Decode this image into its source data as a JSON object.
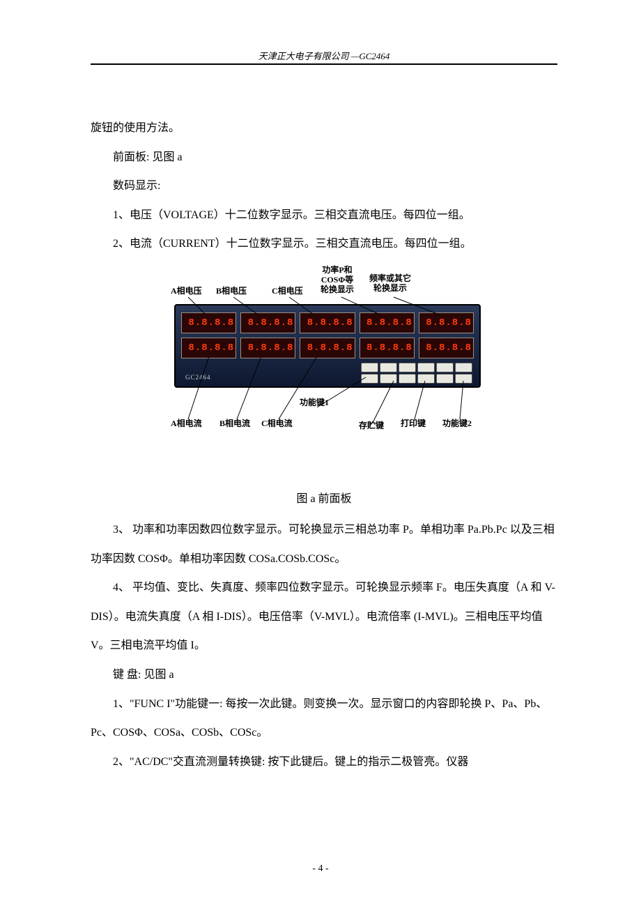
{
  "header": "天津正大电子有限公司  —GC2464",
  "intro": "旋钮的使用方法。",
  "lines": [
    "前面板:  见图 a",
    "数码显示:",
    "1、电压（VOLTAGE）十二位数字显示。三相交直流电压。每四位一组。",
    "2、电流（CURRENT）十二位数字显示。三相交直流电压。每四位一组。"
  ],
  "diagram": {
    "device_model": "GC2464",
    "top_labels": {
      "a_v": "A相电压",
      "b_v": "B相电压",
      "c_v": "C相电压",
      "p_cos": "功率P和\nCOSΦ等\n轮换显示",
      "freq": "频率或其它\n轮换显示"
    },
    "bottom_labels": {
      "a_i": "A相电流",
      "b_i": "B相电流",
      "c_i": "C相电流",
      "func1": "功能键1",
      "store": "存贮键",
      "print": "打印键",
      "func2": "功能键2"
    },
    "display_value": "8.8.8.8",
    "display_color": "#ff3b10",
    "chassis_color_top": "#2a3a5a",
    "chassis_color_bottom": "#0e1830",
    "display_bg": "#2a0606",
    "key_bg": "#e8e8e0"
  },
  "caption": "图 a    前面板",
  "body": [
    "3、 功率和功率因数四位数字显示。可轮换显示三相总功率 P。单相功率 Pa.Pb.Pc 以及三相功率因数 COSΦ。单相功率因数 COSa.COSb.COSc。",
    "4、 平均值、变比、失真度、频率四位数字显示。可轮换显示频率 F。电压失真度（A 和 V-DIS）。电流失真度（A 相 I-DIS）。电压倍率（V-MVL）。电流倍率 (I-MVL)。三相电压平均值 V。三相电流平均值 I。",
    "键      盘:  见图 a",
    "1、\"FUNC I\"功能键一:  每按一次此键。则变换一次。显示窗口的内容即轮换 P、Pa、Pb、Pc、COSΦ、COSa、COSb、COSc。",
    "2、\"AC/DC\"交直流测量转换键:  按下此键后。键上的指示二极管亮。仪器"
  ],
  "page_number": "- 4 -"
}
